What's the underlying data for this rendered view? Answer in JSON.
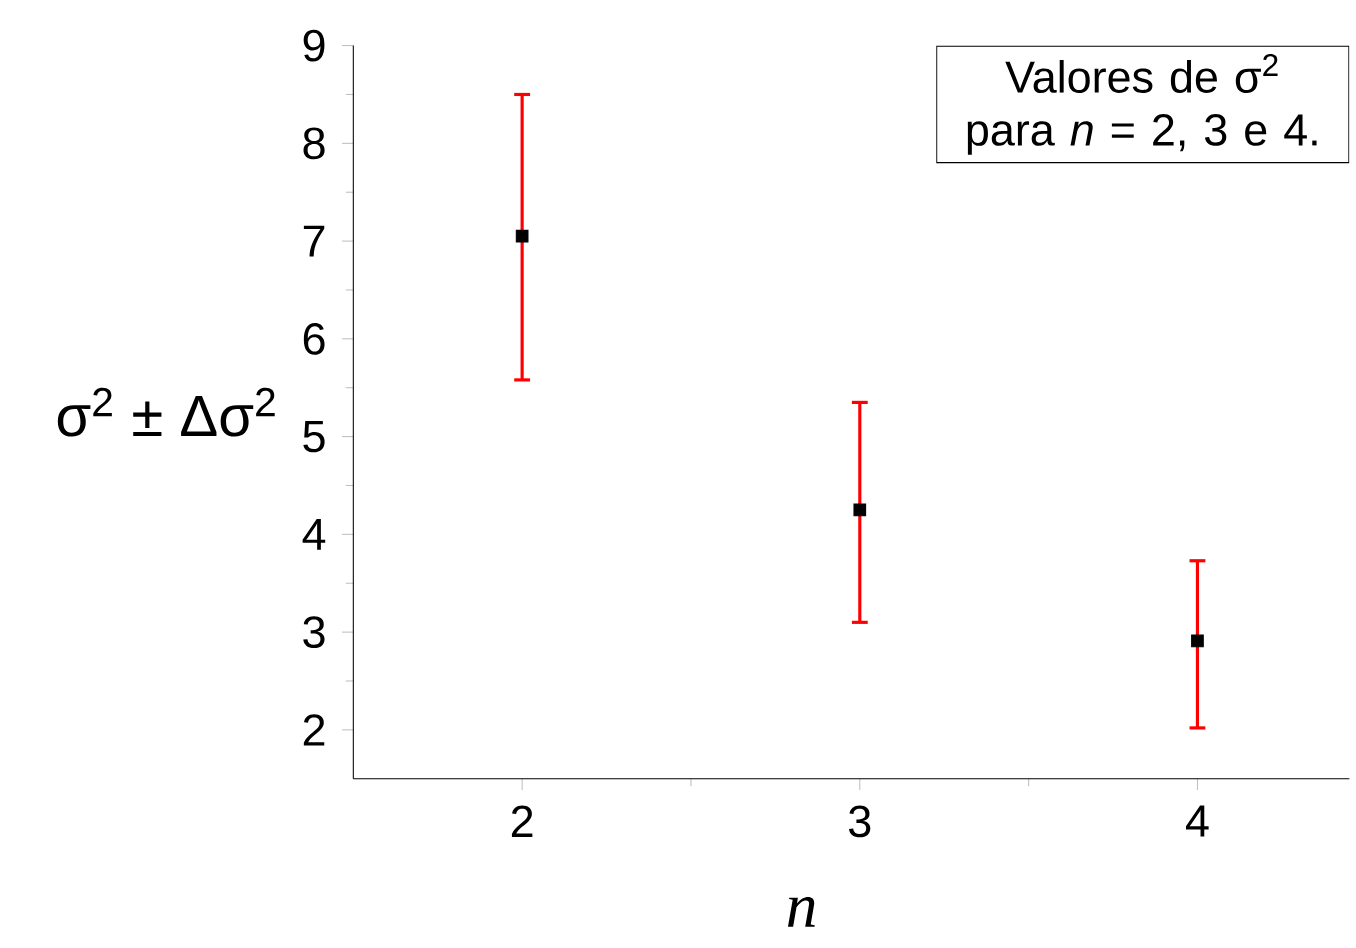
{
  "chart_data": {
    "type": "scatter",
    "xlabel": "n",
    "ylabel": "σ$^{2}$ ± Δσ$^{2}$",
    "x": [
      2,
      3,
      4
    ],
    "series": [
      {
        "color": "#000000",
        "values": [
          7.05,
          4.25,
          2.91
        ],
        "errors": [
          [
            5.58,
            8.5
          ],
          [
            3.1,
            5.35
          ],
          [
            2.02,
            3.73
          ]
        ]
      }
    ],
    "xlim": [
      1.5,
      4.45
    ],
    "ylim": [
      1.5,
      9
    ],
    "xticks": [
      2,
      3,
      4
    ],
    "yticks": [
      2,
      3,
      4,
      5,
      6,
      7,
      8,
      9
    ],
    "marker": "square",
    "grid": false,
    "annotations": [
      "Valores de σ$^{2}$ para *n* = 2, 3 e 4."
    ]
  }
}
